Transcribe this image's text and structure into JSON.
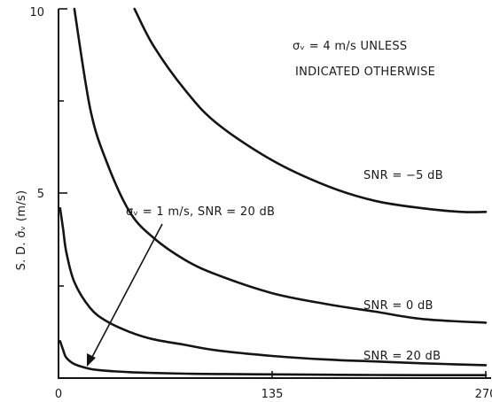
{
  "chart_data": {
    "type": "line",
    "title": "",
    "xlabel": "",
    "ylabel": "S. D. σ̂ᵥ  (m/s)",
    "xlim": [
      0,
      270
    ],
    "ylim": [
      0,
      10
    ],
    "x_ticks": [
      "0",
      "135",
      "270"
    ],
    "y_ticks": [
      "5",
      "10"
    ],
    "grid": false,
    "legend": "none",
    "series": [
      {
        "name": "SNR = -5 dB",
        "x": [
          48,
          60,
          80,
          100,
          135,
          170,
          200,
          230,
          255,
          270
        ],
        "y": [
          10.0,
          9.0,
          7.8,
          6.9,
          5.9,
          5.2,
          4.8,
          4.6,
          4.5,
          4.5
        ]
      },
      {
        "name": "SNR = 0 dB",
        "x": [
          10,
          20,
          30,
          45,
          60,
          80,
          100,
          135,
          170,
          200,
          230,
          270
        ],
        "y": [
          10.0,
          7.3,
          5.9,
          4.5,
          3.8,
          3.2,
          2.8,
          2.3,
          2.0,
          1.8,
          1.6,
          1.5
        ]
      },
      {
        "name": "SNR = 20 dB",
        "x": [
          1,
          3,
          5,
          10,
          20,
          30,
          45,
          60,
          80,
          100,
          135,
          170,
          200,
          230,
          270
        ],
        "y": [
          4.6,
          4.0,
          3.4,
          2.6,
          1.9,
          1.55,
          1.25,
          1.05,
          0.9,
          0.75,
          0.6,
          0.5,
          0.45,
          0.4,
          0.35
        ]
      },
      {
        "name": "σv = 1 m/s, SNR = 20 dB",
        "x": [
          1,
          3,
          5,
          10,
          20,
          30,
          45,
          60,
          80,
          100,
          135,
          170,
          200,
          230,
          270
        ],
        "y": [
          1.0,
          0.75,
          0.55,
          0.38,
          0.25,
          0.2,
          0.16,
          0.14,
          0.12,
          0.11,
          0.1,
          0.09,
          0.085,
          0.08,
          0.08
        ]
      }
    ],
    "annotations": {
      "header_line1": "σᵥ = 4 m/s  UNLESS",
      "header_line2": "INDICATED OTHERWISE",
      "snr_m5": "SNR = −5 dB",
      "snr_0": "SNR = 0 dB",
      "snr_20": "SNR = 20 dB",
      "sigma1": "σᵥ = 1 m/s,  SNR = 20 dB"
    },
    "colors": {
      "ink": "#141414"
    }
  }
}
